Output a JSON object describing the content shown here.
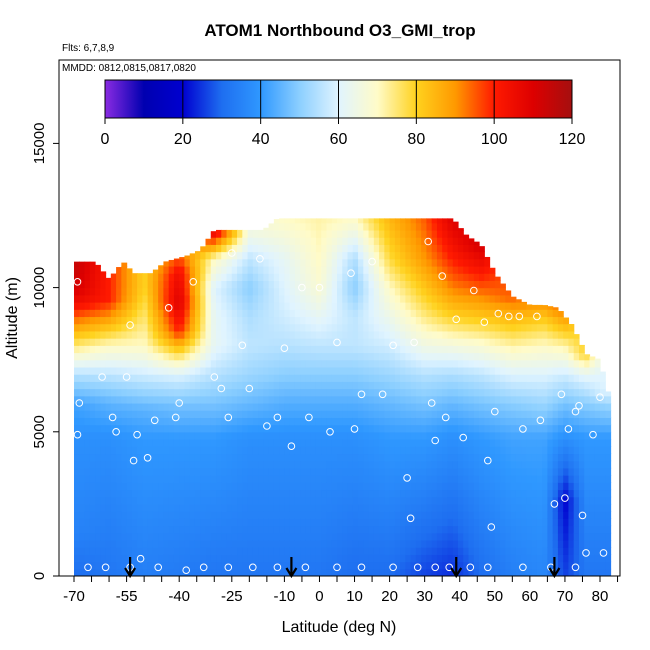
{
  "chart_data": {
    "type": "heatmap",
    "title": "ATOM1 Northbound O3_GMI_trop",
    "flights_note": "Flts: 6,7,8,9",
    "dates_note": "MMDD: 0812,0815,0817,0820",
    "xlabel": "Latitude (deg N)",
    "ylabel": "Altitude (m)",
    "xlim": [
      -70,
      87
    ],
    "ylim": [
      0,
      17500
    ],
    "x_ticks": [
      {
        "value": -70,
        "label": "-70"
      },
      {
        "value": -55,
        "label": "-55"
      },
      {
        "value": -40,
        "label": "-40"
      },
      {
        "value": -25,
        "label": "-25"
      },
      {
        "value": -10,
        "label": "-10"
      },
      {
        "value": 0,
        "label": "0"
      },
      {
        "value": 10,
        "label": "10"
      },
      {
        "value": 20,
        "label": "20"
      },
      {
        "value": 30,
        "label": "30"
      },
      {
        "value": 40,
        "label": "40"
      },
      {
        "value": 50,
        "label": "50"
      },
      {
        "value": 60,
        "label": "60"
      },
      {
        "value": 70,
        "label": "70"
      },
      {
        "value": 80,
        "label": "80"
      }
    ],
    "x_minor_ticks": [
      -65,
      -60,
      -50,
      -45,
      -35,
      -30,
      -20,
      -15,
      -5,
      5,
      15,
      25,
      35,
      45,
      55,
      65,
      75,
      85
    ],
    "y_ticks": [
      {
        "value": 0,
        "label": "0"
      },
      {
        "value": 5000,
        "label": "5000"
      },
      {
        "value": 10000,
        "label": "10000"
      },
      {
        "value": 15000,
        "label": "15000"
      }
    ],
    "colorbar": {
      "min": 0,
      "max": 120,
      "ticks": [
        {
          "value": 0,
          "label": "0"
        },
        {
          "value": 20,
          "label": "20"
        },
        {
          "value": 40,
          "label": "40"
        },
        {
          "value": 60,
          "label": "60"
        },
        {
          "value": 80,
          "label": "80"
        },
        {
          "value": 100,
          "label": "100"
        },
        {
          "value": 120,
          "label": "120"
        }
      ],
      "stops": [
        {
          "v": 0,
          "c": "#8a2be2"
        },
        {
          "v": 10,
          "c": "#0000b0"
        },
        {
          "v": 20,
          "c": "#0000d0"
        },
        {
          "v": 30,
          "c": "#1e6ef0"
        },
        {
          "v": 40,
          "c": "#2f98ff"
        },
        {
          "v": 50,
          "c": "#8ccfff"
        },
        {
          "v": 60,
          "c": "#e0f4ff"
        },
        {
          "v": 70,
          "c": "#fffbc8"
        },
        {
          "v": 80,
          "c": "#ffd21e"
        },
        {
          "v": 90,
          "c": "#ff9900"
        },
        {
          "v": 100,
          "c": "#ff1a00"
        },
        {
          "v": 110,
          "c": "#dd0000"
        },
        {
          "v": 120,
          "c": "#a50f0f"
        }
      ]
    },
    "top_boundary": [
      [
        -70,
        10900
      ],
      [
        -64,
        10900
      ],
      [
        -60,
        10300
      ],
      [
        -56,
        10900
      ],
      [
        -53,
        10500
      ],
      [
        -48,
        10500
      ],
      [
        -44,
        10900
      ],
      [
        -38,
        11100
      ],
      [
        -34,
        11300
      ],
      [
        -30,
        12000
      ],
      [
        -22,
        12000
      ],
      [
        -16,
        12000
      ],
      [
        -12,
        12400
      ],
      [
        25,
        12400
      ],
      [
        30,
        12400
      ],
      [
        38,
        12400
      ],
      [
        42,
        11800
      ],
      [
        46,
        11500
      ],
      [
        50,
        10500
      ],
      [
        55,
        9700
      ],
      [
        60,
        9400
      ],
      [
        64,
        9400
      ],
      [
        68,
        9300
      ],
      [
        72,
        8700
      ],
      [
        76,
        7700
      ],
      [
        80,
        7500
      ],
      [
        82,
        6400
      ]
    ],
    "field": {
      "note": "ozone mixing ratio (ppbv) as altitude profiles by latitude",
      "profiles": [
        {
          "lat": -70,
          "levels": [
            [
              0,
              30
            ],
            [
              1500,
              35
            ],
            [
              4800,
              38
            ],
            [
              6000,
              42
            ],
            [
              7000,
              55
            ],
            [
              8000,
              75
            ],
            [
              9000,
              95
            ],
            [
              9500,
              105
            ],
            [
              10000,
              112
            ],
            [
              10900,
              115
            ]
          ]
        },
        {
          "lat": -60,
          "levels": [
            [
              0,
              32
            ],
            [
              4800,
              38
            ],
            [
              6000,
              45
            ],
            [
              7000,
              56
            ],
            [
              8000,
              70
            ],
            [
              9000,
              90
            ],
            [
              9600,
              100
            ],
            [
              10300,
              100
            ]
          ]
        },
        {
          "lat": -50,
          "levels": [
            [
              0,
              34
            ],
            [
              4800,
              40
            ],
            [
              5800,
              45
            ],
            [
              7000,
              58
            ],
            [
              8000,
              70
            ],
            [
              9000,
              75
            ],
            [
              10000,
              80
            ],
            [
              10500,
              80
            ]
          ]
        },
        {
          "lat": -40,
          "levels": [
            [
              0,
              33
            ],
            [
              4800,
              40
            ],
            [
              6000,
              48
            ],
            [
              7000,
              60
            ],
            [
              7800,
              80
            ],
            [
              8500,
              100
            ],
            [
              9500,
              110
            ],
            [
              10500,
              105
            ],
            [
              11100,
              95
            ]
          ]
        },
        {
          "lat": -30,
          "levels": [
            [
              0,
              32
            ],
            [
              4800,
              40
            ],
            [
              6000,
              48
            ],
            [
              7000,
              55
            ],
            [
              8000,
              62
            ],
            [
              9000,
              62
            ],
            [
              10000,
              60
            ],
            [
              11000,
              70
            ],
            [
              12000,
              110
            ]
          ]
        },
        {
          "lat": -20,
          "levels": [
            [
              0,
              32
            ],
            [
              4800,
              38
            ],
            [
              6000,
              46
            ],
            [
              7000,
              52
            ],
            [
              8000,
              56
            ],
            [
              9000,
              54
            ],
            [
              10000,
              50
            ],
            [
              11000,
              56
            ],
            [
              12000,
              66
            ]
          ]
        },
        {
          "lat": -10,
          "levels": [
            [
              0,
              32
            ],
            [
              4800,
              38
            ],
            [
              6000,
              44
            ],
            [
              7000,
              50
            ],
            [
              8000,
              55
            ],
            [
              9000,
              58
            ],
            [
              10000,
              60
            ],
            [
              11000,
              62
            ],
            [
              12400,
              70
            ]
          ]
        },
        {
          "lat": 0,
          "levels": [
            [
              0,
              32
            ],
            [
              4800,
              38
            ],
            [
              6000,
              44
            ],
            [
              7000,
              50
            ],
            [
              8000,
              56
            ],
            [
              9000,
              62
            ],
            [
              10000,
              68
            ],
            [
              11000,
              70
            ],
            [
              12400,
              72
            ]
          ]
        },
        {
          "lat": 10,
          "levels": [
            [
              0,
              30
            ],
            [
              4800,
              38
            ],
            [
              6000,
              44
            ],
            [
              7000,
              50
            ],
            [
              8000,
              56
            ],
            [
              9000,
              56
            ],
            [
              10000,
              50
            ],
            [
              11000,
              54
            ],
            [
              12400,
              70
            ]
          ]
        },
        {
          "lat": 20,
          "levels": [
            [
              0,
              30
            ],
            [
              4800,
              40
            ],
            [
              6000,
              46
            ],
            [
              7000,
              52
            ],
            [
              8000,
              58
            ],
            [
              9000,
              64
            ],
            [
              10000,
              70
            ],
            [
              11000,
              78
            ],
            [
              12400,
              85
            ]
          ]
        },
        {
          "lat": 30,
          "levels": [
            [
              0,
              26
            ],
            [
              4800,
              40
            ],
            [
              6000,
              48
            ],
            [
              7000,
              55
            ],
            [
              8000,
              65
            ],
            [
              9000,
              74
            ],
            [
              10000,
              82
            ],
            [
              11000,
              90
            ],
            [
              12400,
              95
            ]
          ]
        },
        {
          "lat": 38,
          "levels": [
            [
              0,
              24
            ],
            [
              4800,
              38
            ],
            [
              6000,
              46
            ],
            [
              7000,
              54
            ],
            [
              8000,
              66
            ],
            [
              9000,
              80
            ],
            [
              10000,
              92
            ],
            [
              11000,
              100
            ],
            [
              12400,
              110
            ]
          ]
        },
        {
          "lat": 46,
          "levels": [
            [
              0,
              30
            ],
            [
              4800,
              40
            ],
            [
              6000,
              48
            ],
            [
              7000,
              56
            ],
            [
              8000,
              68
            ],
            [
              9000,
              82
            ],
            [
              10000,
              95
            ],
            [
              11500,
              112
            ]
          ]
        },
        {
          "lat": 55,
          "levels": [
            [
              0,
              34
            ],
            [
              4800,
              42
            ],
            [
              6000,
              50
            ],
            [
              7000,
              60
            ],
            [
              8000,
              72
            ],
            [
              9000,
              85
            ],
            [
              9700,
              95
            ]
          ]
        },
        {
          "lat": 64,
          "levels": [
            [
              0,
              36
            ],
            [
              4800,
              42
            ],
            [
              6000,
              52
            ],
            [
              7000,
              60
            ],
            [
              8000,
              70
            ],
            [
              9000,
              82
            ],
            [
              9400,
              90
            ]
          ]
        },
        {
          "lat": 70,
          "levels": [
            [
              0,
              26
            ],
            [
              2600,
              20
            ],
            [
              4800,
              38
            ],
            [
              6000,
              48
            ],
            [
              7000,
              58
            ],
            [
              8000,
              72
            ],
            [
              9300,
              95
            ]
          ]
        },
        {
          "lat": 76,
          "levels": [
            [
              0,
              32
            ],
            [
              4800,
              40
            ],
            [
              6000,
              50
            ],
            [
              7000,
              62
            ],
            [
              7700,
              80
            ]
          ]
        },
        {
          "lat": 82,
          "levels": [
            [
              0,
              32
            ],
            [
              4800,
              40
            ],
            [
              6000,
              52
            ],
            [
              6400,
              60
            ]
          ]
        }
      ]
    },
    "observation_points": [
      [
        -69,
        10200
      ],
      [
        -68.5,
        6000
      ],
      [
        -69,
        4900
      ],
      [
        -66,
        300
      ],
      [
        -62,
        6900
      ],
      [
        -61,
        300
      ],
      [
        -59,
        5500
      ],
      [
        -58,
        5000
      ],
      [
        -55,
        6900
      ],
      [
        -54,
        8700
      ],
      [
        -53,
        4000
      ],
      [
        -52,
        4900
      ],
      [
        -51,
        600
      ],
      [
        -49,
        4100
      ],
      [
        -47,
        5400
      ],
      [
        -46,
        300
      ],
      [
        -43,
        9300
      ],
      [
        -41,
        5500
      ],
      [
        -40,
        6000
      ],
      [
        -38,
        200
      ],
      [
        -36,
        10200
      ],
      [
        -30,
        6900
      ],
      [
        -28,
        6500
      ],
      [
        -26,
        5500
      ],
      [
        -25,
        11200
      ],
      [
        -22,
        8000
      ],
      [
        -20,
        6500
      ],
      [
        -17,
        11000
      ],
      [
        -15,
        5200
      ],
      [
        -12,
        5500
      ],
      [
        -10,
        7900
      ],
      [
        -8,
        4500
      ],
      [
        -5,
        10000
      ],
      [
        -3,
        5500
      ],
      [
        0,
        10000
      ],
      [
        3,
        5000
      ],
      [
        5,
        8100
      ],
      [
        9,
        10500
      ],
      [
        10,
        5100
      ],
      [
        12,
        6300
      ],
      [
        15,
        10900
      ],
      [
        18,
        6300
      ],
      [
        21,
        8000
      ],
      [
        25,
        3400
      ],
      [
        26,
        2000
      ],
      [
        27,
        8100
      ],
      [
        31,
        11600
      ],
      [
        32,
        6000
      ],
      [
        33,
        4700
      ],
      [
        35,
        10400
      ],
      [
        36,
        5500
      ],
      [
        39,
        8900
      ],
      [
        41,
        4800
      ],
      [
        44,
        9900
      ],
      [
        47,
        8800
      ],
      [
        48,
        4000
      ],
      [
        50,
        5700
      ],
      [
        51,
        9100
      ],
      [
        49,
        1700
      ],
      [
        54,
        9000
      ],
      [
        57,
        9000
      ],
      [
        58,
        5100
      ],
      [
        62,
        9000
      ],
      [
        63,
        5400
      ],
      [
        67,
        2500
      ],
      [
        69,
        6300
      ],
      [
        70,
        2700
      ],
      [
        71,
        5100
      ],
      [
        73,
        5700
      ],
      [
        74,
        5900
      ],
      [
        75,
        2100
      ],
      [
        76,
        800
      ],
      [
        78,
        4900
      ],
      [
        80,
        6200
      ],
      [
        81,
        800
      ],
      [
        73,
        300
      ],
      [
        66,
        300
      ],
      [
        58,
        300
      ],
      [
        48,
        300
      ],
      [
        43,
        300
      ],
      [
        37,
        300
      ],
      [
        33,
        300
      ],
      [
        28,
        300
      ],
      [
        21,
        300
      ],
      [
        12,
        300
      ],
      [
        5,
        300
      ],
      [
        -4,
        300
      ],
      [
        -12,
        300
      ],
      [
        -19,
        300
      ],
      [
        -26,
        300
      ],
      [
        -33,
        300
      ],
      [
        -54,
        300
      ]
    ],
    "arrow_latitudes": [
      -54,
      -8,
      39,
      67
    ]
  }
}
